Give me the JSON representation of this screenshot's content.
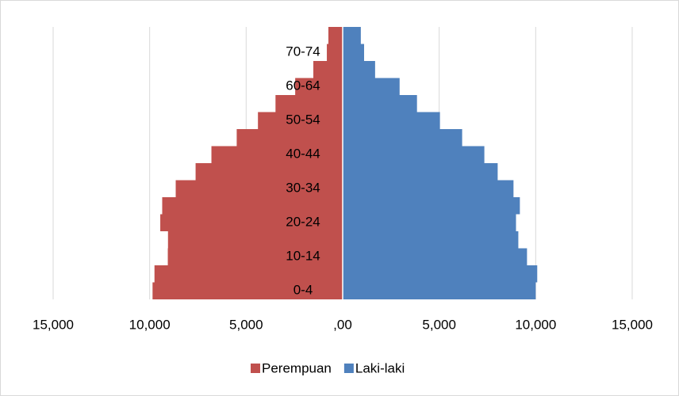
{
  "chart_data": {
    "type": "pyramid",
    "categories": [
      "0-4",
      null,
      "10-14",
      null,
      "20-24",
      null,
      "30-34",
      null,
      "40-44",
      null,
      "50-54",
      null,
      "60-64",
      null,
      "70-74",
      null
    ],
    "series": [
      {
        "name": "Perempuan",
        "color": "#c0504d",
        "values": [
          -9850,
          -9750,
          -9060,
          -9050,
          -9450,
          -9350,
          -8650,
          -7620,
          -6800,
          -5490,
          -4390,
          -3480,
          -2460,
          -1520,
          -820,
          -740
        ]
      },
      {
        "name": "Laki-laki",
        "color": "#4f81bd",
        "values": [
          10000,
          10080,
          9550,
          9100,
          8980,
          9180,
          8850,
          8030,
          7340,
          6190,
          5040,
          3850,
          2950,
          1680,
          1110,
          940
        ]
      }
    ],
    "xlim": [
      -15000,
      15000
    ],
    "xticks": [
      {
        "value": -15000,
        "label": "15,000"
      },
      {
        "value": -10000,
        "label": "10,000"
      },
      {
        "value": -5000,
        "label": "5,000"
      },
      {
        "value": 0,
        "label": ",00"
      },
      {
        "value": 5000,
        "label": "5,000"
      },
      {
        "value": 10000,
        "label": "10,000"
      },
      {
        "value": 15000,
        "label": "15,000"
      }
    ],
    "grid": true,
    "legend": "bottom"
  }
}
